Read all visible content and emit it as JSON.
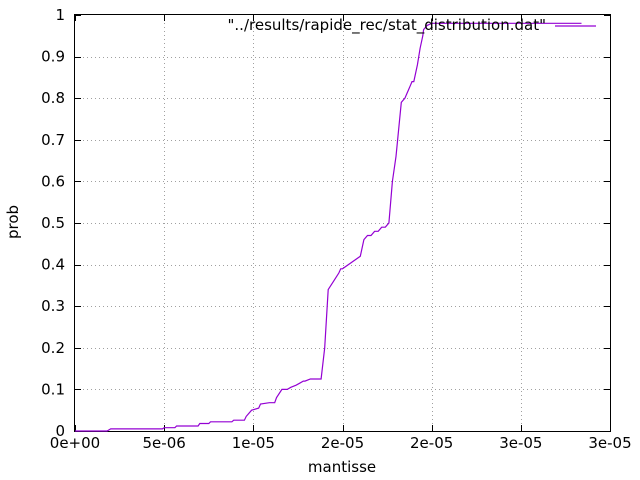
{
  "chart_data": {
    "type": "line",
    "xlabel": "mantisse",
    "ylabel": "prob",
    "xlim": [
      0,
      3e-05
    ],
    "ylim": [
      0,
      1
    ],
    "x_ticks": [
      0,
      5e-06,
      1e-05,
      1.5e-05,
      2e-05,
      2.5e-05,
      3e-05
    ],
    "x_tick_labels": [
      "0e+00",
      "5e-06",
      "1e-05",
      "2e-05",
      "2e-05",
      "3e-05",
      "3e-05"
    ],
    "y_ticks": [
      0,
      0.1,
      0.2,
      0.3,
      0.4,
      0.5,
      0.6,
      0.7,
      0.8,
      0.9,
      1
    ],
    "y_tick_labels": [
      "0",
      "0.1",
      "0.2",
      "0.3",
      "0.4",
      "0.5",
      "0.6",
      "0.7",
      "0.8",
      "0.9",
      "1"
    ],
    "grid": true,
    "legend_position": "top-right",
    "series": [
      {
        "name": "\"../results/rapide_rec/stat_distribution.dat\"",
        "color": "#9400d3",
        "x": [
          0,
          1.8e-06,
          2e-06,
          4.9e-06,
          5e-06,
          5.6e-06,
          5.7e-06,
          6.9e-06,
          7e-06,
          7.5e-06,
          7.6e-06,
          8.8e-06,
          8.9e-06,
          9.5e-06,
          9.6e-06,
          9.9e-06,
          1.03e-05,
          1.04e-05,
          1.09e-05,
          1.12e-05,
          1.13e-05,
          1.16e-05,
          1.19e-05,
          1.21e-05,
          1.24e-05,
          1.26e-05,
          1.28e-05,
          1.29e-05,
          1.32e-05,
          1.38e-05,
          1.4e-05,
          1.42e-05,
          1.45e-05,
          1.48e-05,
          1.49e-05,
          1.5e-05,
          1.6e-05,
          1.62e-05,
          1.64e-05,
          1.66e-05,
          1.68e-05,
          1.7e-05,
          1.72e-05,
          1.74e-05,
          1.76e-05,
          1.78e-05,
          1.8e-05,
          1.83e-05,
          1.85e-05,
          1.86e-05,
          1.87e-05,
          1.88e-05,
          1.89e-05,
          1.9e-05,
          1.91e-05,
          1.92e-05,
          1.935e-05,
          1.95e-05,
          1.955e-05,
          1.965e-05,
          1.975e-05,
          1.985e-05,
          2e-05,
          2.01e-05,
          2.04e-05,
          2.06e-05,
          2.08e-05,
          2.1e-05,
          2.14e-05,
          2.2e-05,
          2.5e-05,
          2.84e-05
        ],
        "y": [
          0,
          0,
          0.005,
          0.005,
          0.008,
          0.008,
          0.012,
          0.012,
          0.018,
          0.018,
          0.022,
          0.022,
          0.026,
          0.026,
          0.035,
          0.05,
          0.055,
          0.065,
          0.068,
          0.068,
          0.08,
          0.1,
          0.1,
          0.105,
          0.11,
          0.115,
          0.12,
          0.12,
          0.125,
          0.125,
          0.2,
          0.34,
          0.36,
          0.38,
          0.39,
          0.39,
          0.42,
          0.46,
          0.47,
          0.47,
          0.48,
          0.48,
          0.49,
          0.49,
          0.5,
          0.6,
          0.66,
          0.79,
          0.8,
          0.81,
          0.82,
          0.83,
          0.84,
          0.84,
          0.86,
          0.88,
          0.92,
          0.95,
          0.965,
          0.97,
          0.975,
          0.977,
          0.98,
          0.98,
          0.98,
          0.98,
          0.98,
          0.98,
          0.98,
          0.98,
          0.98,
          0.98
        ]
      }
    ]
  }
}
